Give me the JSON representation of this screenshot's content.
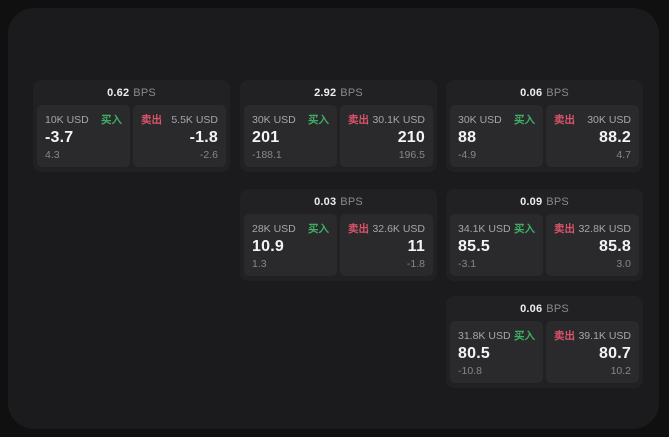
{
  "labels": {
    "bps_unit": "BPS",
    "buy": "买入",
    "sell": "卖出"
  },
  "colors": {
    "buy": "#3fae63",
    "sell": "#d9536a",
    "panel_bg": "#1b1b1d",
    "card_bg": "#212124",
    "tile_bg": "#2a2a2d"
  },
  "cards": [
    {
      "row": 1,
      "col": 1,
      "bps": "0.62",
      "buy": {
        "amount": "10K USD",
        "value": "-3.7",
        "delta": "4.3"
      },
      "sell": {
        "amount": "5.5K USD",
        "value": "-1.8",
        "delta": "-2.6"
      }
    },
    {
      "row": 1,
      "col": 2,
      "bps": "2.92",
      "buy": {
        "amount": "30K USD",
        "value": "201",
        "delta": "-188.1"
      },
      "sell": {
        "amount": "30.1K USD",
        "value": "210",
        "delta": "196.5"
      }
    },
    {
      "row": 1,
      "col": 3,
      "bps": "0.06",
      "buy": {
        "amount": "30K USD",
        "value": "88",
        "delta": "-4.9"
      },
      "sell": {
        "amount": "30K USD",
        "value": "88.2",
        "delta": "4.7"
      }
    },
    {
      "row": 2,
      "col": 2,
      "bps": "0.03",
      "buy": {
        "amount": "28K USD",
        "value": "10.9",
        "delta": "1.3"
      },
      "sell": {
        "amount": "32.6K USD",
        "value": "11",
        "delta": "-1.8"
      }
    },
    {
      "row": 2,
      "col": 3,
      "bps": "0.09",
      "buy": {
        "amount": "34.1K USD",
        "value": "85.5",
        "delta": "-3.1"
      },
      "sell": {
        "amount": "32.8K USD",
        "value": "85.8",
        "delta": "3.0"
      }
    },
    {
      "row": 3,
      "col": 3,
      "bps": "0.06",
      "buy": {
        "amount": "31.8K USD",
        "value": "80.5",
        "delta": "-10.8"
      },
      "sell": {
        "amount": "39.1K USD",
        "value": "80.7",
        "delta": "10.2"
      }
    }
  ]
}
